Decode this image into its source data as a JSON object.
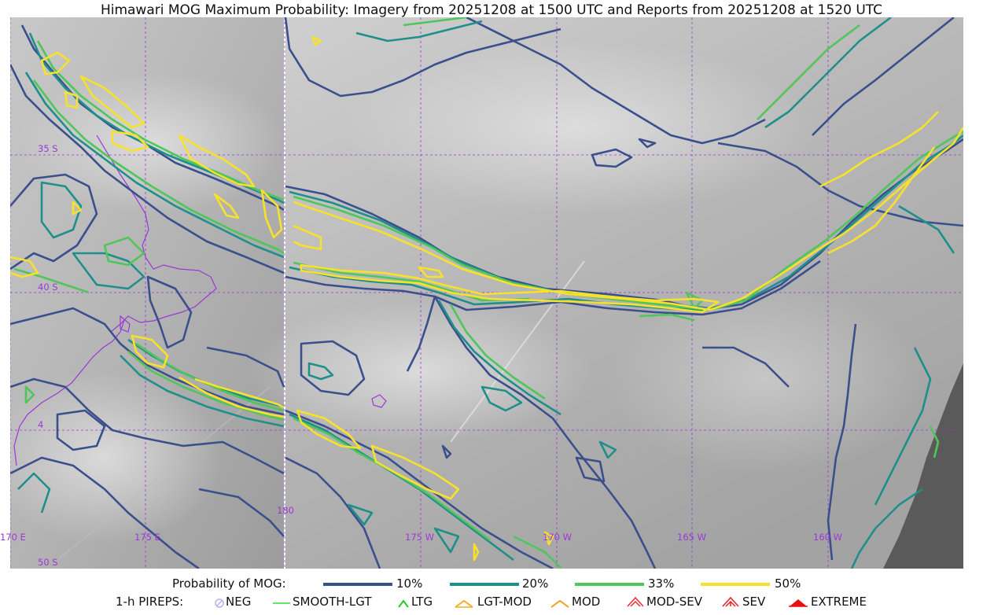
{
  "title": "Himawari MOG Maximum Probability: Imagery from 20251208 at 1500 UTC and Reports from 20251208 at 1520 UTC",
  "colors": {
    "p10": "#3b4f8c",
    "p20": "#1f8f8a",
    "p33": "#4fc65a",
    "p50": "#f7e12a",
    "grid": "#9a38d8",
    "coast": "#9a38d8",
    "space": "#5a5a5a"
  },
  "grid_labels": {
    "lat35": "35 S",
    "lat40": "40 S",
    "lat45": "4",
    "lat50": "50 S",
    "lon170e": "170 E",
    "lon175e": "175 E",
    "lon180": "180",
    "lon175w": "175 W",
    "lon170w": "170 W",
    "lon165w": "165 W",
    "lon160w": "160 W"
  },
  "legend": {
    "prob_title": "Probability of MOG:",
    "prob_items": [
      {
        "label": "10%",
        "color": "#3b4f8c"
      },
      {
        "label": "20%",
        "color": "#1f8f8a"
      },
      {
        "label": "33%",
        "color": "#4fc65a"
      },
      {
        "label": "50%",
        "color": "#f7e12a"
      }
    ],
    "pirep_title": "1-h PIREPS:",
    "pirep_items": [
      {
        "label": "NEG",
        "icon": "neg-circle-icon",
        "color": "#b9b0f0"
      },
      {
        "label": "SMOOTH-LGT",
        "icon": "smooth-line-icon",
        "color": "#33dd33"
      },
      {
        "label": "LTG",
        "icon": "ltg-caret-icon",
        "color": "#22cc22"
      },
      {
        "label": "LGT-MOD",
        "icon": "lgt-mod-caret-icon",
        "color": "#f0b020"
      },
      {
        "label": "MOD",
        "icon": "mod-caret-icon",
        "color": "#f0a020"
      },
      {
        "label": "MOD-SEV",
        "icon": "mod-sev-caret-icon",
        "color": "#e83030"
      },
      {
        "label": "SEV",
        "icon": "sev-caret-icon",
        "color": "#e82020"
      },
      {
        "label": "EXTREME",
        "icon": "extreme-caret-icon",
        "color": "#e81010"
      }
    ]
  }
}
